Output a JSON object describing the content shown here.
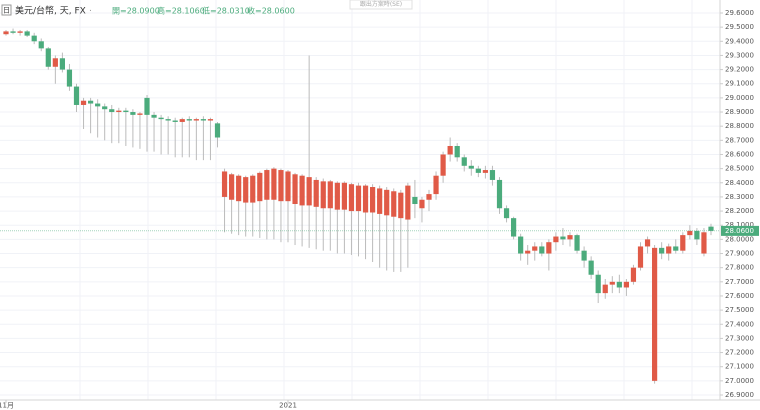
{
  "chart_data": {
    "type": "candlestick",
    "title": "美元/台幣, 天, FX",
    "interval_icon": "日",
    "ohlc_labels": [
      "開=28.0900",
      "高=28.1060",
      "低=28.0310",
      "收=28.0600"
    ],
    "top_note": "跟出方案時(SE)",
    "last_price_label": "28.0600",
    "up_color": "#e05a47",
    "down_color": "#4bab7c",
    "categories": [
      "11月",
      null,
      null,
      null,
      null,
      null,
      null,
      null,
      null,
      null,
      null,
      null,
      null,
      null,
      null,
      null,
      null,
      null,
      null,
      null,
      null,
      null,
      null,
      null,
      null,
      null,
      null,
      null,
      null,
      null,
      null,
      null,
      null,
      null,
      null,
      null,
      null,
      null,
      null,
      null,
      "2021",
      null,
      null,
      null,
      null,
      null,
      null,
      null,
      null,
      null,
      null,
      null,
      null,
      null,
      null,
      null,
      null,
      null,
      null,
      null,
      null,
      null,
      null,
      null,
      null,
      null,
      null,
      null,
      null,
      null,
      null,
      null,
      null,
      null,
      null,
      null,
      null,
      null,
      null,
      null,
      null,
      null,
      null,
      null,
      null,
      null,
      null,
      null,
      null,
      null,
      null,
      null,
      null,
      null,
      null,
      null,
      null,
      null,
      null,
      null,
      null
    ],
    "open": [
      29.45,
      29.47,
      29.46,
      29.47,
      29.44,
      29.4,
      29.35,
      29.22,
      29.28,
      29.2,
      29.08,
      28.95,
      28.98,
      28.96,
      28.94,
      28.92,
      28.9,
      28.91,
      28.9,
      28.88,
      29.0,
      28.88,
      28.86,
      28.85,
      28.84,
      28.83,
      28.85,
      28.84,
      28.85,
      28.84,
      28.82,
      28.3,
      28.28,
      28.27,
      28.26,
      28.26,
      28.27,
      28.28,
      28.28,
      28.27,
      28.27,
      28.25,
      28.24,
      28.24,
      28.23,
      28.22,
      28.22,
      28.21,
      28.21,
      28.2,
      28.2,
      28.19,
      28.19,
      28.18,
      28.17,
      28.16,
      28.15,
      28.14,
      28.3,
      28.22,
      28.28,
      28.32,
      28.45,
      28.6,
      28.66,
      28.58,
      28.52,
      28.5,
      28.47,
      28.49,
      28.42,
      28.22,
      28.15,
      28.02,
      27.9,
      27.92,
      27.95,
      27.9,
      27.98,
      28.02,
      28.0,
      28.03,
      27.92,
      27.85,
      27.75,
      27.62,
      27.68,
      27.7,
      27.66,
      27.7,
      27.8,
      27.95,
      27.0,
      27.94,
      27.9,
      27.95,
      27.92,
      28.03,
      28.06,
      27.9,
      28.09
    ],
    "high": [
      29.48,
      29.49,
      29.48,
      29.48,
      29.46,
      29.42,
      29.36,
      29.3,
      29.32,
      29.24,
      29.1,
      29.0,
      29.0,
      28.99,
      28.96,
      28.95,
      28.93,
      28.93,
      28.92,
      28.9,
      29.02,
      28.9,
      28.88,
      28.87,
      28.86,
      28.86,
      28.87,
      28.86,
      28.87,
      28.86,
      28.83,
      28.5,
      28.47,
      28.46,
      28.45,
      28.46,
      28.48,
      28.5,
      28.51,
      28.5,
      28.49,
      28.47,
      28.46,
      29.3,
      28.44,
      28.43,
      28.42,
      28.41,
      28.41,
      28.4,
      28.4,
      28.39,
      28.39,
      28.38,
      28.37,
      28.36,
      28.35,
      28.4,
      28.42,
      28.3,
      28.35,
      28.48,
      28.62,
      28.72,
      28.68,
      28.6,
      28.56,
      28.52,
      28.52,
      28.52,
      28.44,
      28.24,
      28.16,
      28.04,
      27.96,
      27.98,
      27.98,
      28.0,
      28.05,
      28.08,
      28.05,
      28.04,
      27.95,
      27.88,
      27.78,
      27.72,
      27.74,
      27.75,
      27.72,
      27.82,
      27.98,
      28.02,
      27.96,
      27.98,
      27.97,
      28.0,
      28.05,
      28.1,
      28.08,
      28.08,
      28.11
    ],
    "low": [
      29.44,
      29.45,
      29.44,
      29.43,
      29.38,
      29.33,
      29.2,
      29.1,
      29.18,
      29.05,
      28.9,
      28.78,
      28.75,
      28.72,
      28.7,
      28.68,
      28.68,
      28.66,
      28.65,
      28.64,
      28.62,
      28.62,
      28.6,
      28.6,
      28.58,
      28.58,
      28.58,
      28.56,
      28.56,
      28.56,
      28.65,
      28.05,
      28.04,
      28.03,
      28.02,
      28.02,
      28.01,
      28.0,
      28.0,
      27.98,
      27.98,
      27.96,
      27.95,
      27.94,
      27.93,
      27.92,
      27.92,
      27.9,
      27.9,
      27.89,
      27.88,
      27.86,
      27.84,
      27.8,
      27.78,
      27.77,
      27.77,
      27.8,
      28.15,
      28.12,
      28.2,
      28.28,
      28.4,
      28.55,
      28.55,
      28.48,
      28.45,
      28.44,
      28.43,
      28.38,
      28.18,
      28.12,
      28.0,
      27.85,
      27.82,
      27.85,
      27.88,
      27.78,
      27.92,
      27.96,
      27.95,
      27.9,
      27.8,
      27.72,
      27.55,
      27.58,
      27.62,
      27.62,
      27.6,
      27.68,
      27.78,
      27.9,
      26.98,
      27.86,
      27.85,
      27.9,
      27.9,
      28.0,
      27.96,
      27.88,
      28.03
    ],
    "close": [
      29.47,
      29.46,
      29.47,
      29.44,
      29.4,
      29.35,
      29.22,
      29.28,
      29.2,
      29.08,
      28.95,
      28.98,
      28.96,
      28.94,
      28.92,
      28.9,
      28.91,
      28.9,
      28.88,
      28.89,
      28.88,
      28.86,
      28.85,
      28.84,
      28.83,
      28.85,
      28.84,
      28.85,
      28.84,
      28.85,
      28.72,
      28.48,
      28.46,
      28.45,
      28.44,
      28.45,
      28.47,
      28.49,
      28.5,
      28.49,
      28.48,
      28.46,
      28.45,
      28.44,
      28.42,
      28.41,
      28.41,
      28.4,
      28.4,
      28.39,
      28.38,
      28.38,
      28.37,
      28.36,
      28.35,
      28.34,
      28.33,
      28.38,
      28.25,
      28.28,
      28.32,
      28.45,
      28.6,
      28.66,
      28.58,
      28.52,
      28.5,
      28.47,
      28.49,
      28.42,
      28.22,
      28.15,
      28.02,
      27.9,
      27.92,
      27.95,
      27.9,
      27.98,
      28.02,
      28.0,
      28.03,
      27.92,
      27.85,
      27.75,
      27.62,
      27.68,
      27.7,
      27.66,
      27.7,
      27.8,
      27.95,
      28.0,
      27.94,
      27.9,
      27.95,
      27.92,
      28.03,
      28.06,
      28.0,
      28.05,
      28.06
    ],
    "ylim": [
      26.9,
      29.6
    ],
    "yticks": [
      {
        "value": 26.9,
        "label": "26.9000"
      },
      {
        "value": 27.0,
        "label": "27.0000"
      },
      {
        "value": 27.1,
        "label": "27.1000"
      },
      {
        "value": 27.2,
        "label": "27.2000"
      },
      {
        "value": 27.3,
        "label": "27.3000"
      },
      {
        "value": 27.4,
        "label": "27.4000"
      },
      {
        "value": 27.5,
        "label": "27.5000"
      },
      {
        "value": 27.6,
        "label": "27.6000"
      },
      {
        "value": 27.7,
        "label": "27.7000"
      },
      {
        "value": 27.8,
        "label": "27.8000"
      },
      {
        "value": 27.9,
        "label": "27.9000"
      },
      {
        "value": 28.0,
        "label": "28.0000"
      },
      {
        "value": 28.1,
        "label": "28.1000"
      },
      {
        "value": 28.2,
        "label": "28.2000"
      },
      {
        "value": 28.3,
        "label": "28.3000"
      },
      {
        "value": 28.4,
        "label": "28.4000"
      },
      {
        "value": 28.5,
        "label": "28.5000"
      },
      {
        "value": 28.6,
        "label": "28.6000"
      },
      {
        "value": 28.7,
        "label": "28.7000"
      },
      {
        "value": 28.8,
        "label": "28.8000"
      },
      {
        "value": 28.9,
        "label": "28.9000"
      },
      {
        "value": 29.0,
        "label": "29.0000"
      },
      {
        "value": 29.1,
        "label": "29.1000"
      },
      {
        "value": 29.2,
        "label": "29.2000"
      },
      {
        "value": 29.3,
        "label": "29.3000"
      },
      {
        "value": 29.4,
        "label": "29.4000"
      },
      {
        "value": 29.5,
        "label": "29.5000"
      },
      {
        "value": 29.6,
        "label": "29.6000"
      }
    ],
    "grid": true
  }
}
